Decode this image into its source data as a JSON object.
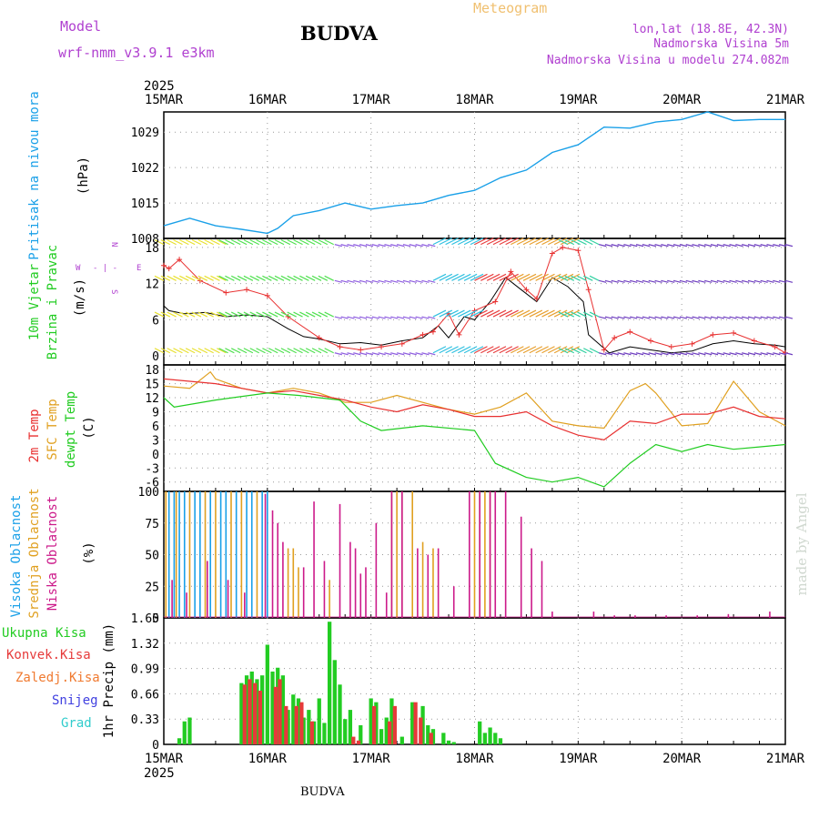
{
  "header": {
    "model_label": "Model",
    "model_name": "wrf-nmm_v3.9.1 e3km",
    "station": "BUDVA",
    "meteogram": "Meteogram",
    "lonlat": "lon,lat (18.8E, 42.3N)",
    "elevation": "Nadmorska Visina 5m",
    "model_elevation": "Nadmorska Visina u modelu 274.082m",
    "footer_station": "BUDVA",
    "credit": "made by Angel"
  },
  "colors": {
    "pressure": "#1aa0e8",
    "temp2m": "#e83030",
    "sfc": "#e0a020",
    "dewpt": "#20cc20",
    "high_cloud": "#1aa0e8",
    "mid_cloud": "#e0a020",
    "low_cloud": "#cc1a8a",
    "precip_total": "#22cc22",
    "precip_conv": "#e63a3a",
    "precip_frozen": "#f07a30",
    "precip_snow": "#4040e0",
    "precip_grad": "#30cccc",
    "purple": "#b040d0"
  },
  "chart_data": [
    {
      "type": "line",
      "title": "Pritisak na nivou mora",
      "unit": "(hPa)",
      "ylim": [
        1008,
        1033
      ],
      "yticks": [
        "1008",
        "1015",
        "1022",
        "1029"
      ],
      "year": "2025",
      "xticks": [
        "15MAR",
        "16MAR",
        "17MAR",
        "18MAR",
        "19MAR",
        "20MAR",
        "21MAR"
      ],
      "x_days": [
        0,
        0.25,
        0.5,
        0.75,
        1.0,
        1.1,
        1.25,
        1.5,
        1.75,
        2.0,
        2.25,
        2.5,
        2.75,
        3.0,
        3.25,
        3.5,
        3.75,
        4.0,
        4.25,
        4.5,
        4.75,
        5.0,
        5.25,
        5.5,
        5.75,
        6.0
      ],
      "values": [
        1010.5,
        1012,
        1010.5,
        1009.8,
        1009,
        1010,
        1012.5,
        1013.5,
        1015,
        1013.8,
        1014.5,
        1015,
        1016.5,
        1017.5,
        1020,
        1021.5,
        1025,
        1026.5,
        1030,
        1029.8,
        1031,
        1031.5,
        1033,
        1031.3,
        1031.5,
        1031.5
      ]
    },
    {
      "type": "line",
      "title": "10m Vjetar Brzina i Pravac",
      "unit": "(m/s)",
      "ylim": [
        -1.5,
        19.5
      ],
      "yticks": [
        "0",
        "6",
        "12",
        "18"
      ],
      "compass": {
        "n": "N",
        "w": "W",
        "e": "E",
        "s": "S",
        "dash": "- | -"
      },
      "series": [
        {
          "name": "speed",
          "x_days": [
            0,
            0.05,
            0.2,
            0.4,
            0.6,
            0.8,
            1.0,
            1.2,
            1.35,
            1.5,
            1.7,
            1.9,
            2.1,
            2.3,
            2.5,
            2.65,
            2.75,
            2.9,
            3.0,
            3.15,
            3.3,
            3.45,
            3.6,
            3.75,
            3.9,
            4.05,
            4.1,
            4.3,
            4.5,
            4.7,
            4.9,
            5.1,
            5.3,
            5.5,
            5.7,
            5.9,
            6.0
          ],
          "values": [
            8.3,
            7.5,
            7.0,
            7.2,
            6.5,
            6.8,
            6.5,
            4.5,
            3.2,
            2.8,
            2.0,
            2.2,
            1.8,
            2.5,
            3.0,
            5.0,
            3.0,
            6.5,
            6.0,
            9.0,
            13.0,
            11.0,
            9.0,
            13.0,
            11.5,
            9.0,
            3.5,
            0.5,
            1.5,
            1.0,
            0.5,
            0.8,
            2.0,
            2.5,
            2.0,
            1.8,
            1.5
          ]
        },
        {
          "name": "gust",
          "x_days": [
            0,
            0.05,
            0.15,
            0.35,
            0.6,
            0.8,
            1.0,
            1.2,
            1.5,
            1.7,
            1.9,
            2.1,
            2.3,
            2.5,
            2.6,
            2.75,
            2.85,
            3.0,
            3.2,
            3.35,
            3.5,
            3.6,
            3.75,
            3.85,
            4.0,
            4.1,
            4.25,
            4.35,
            4.5,
            4.7,
            4.9,
            5.1,
            5.3,
            5.5,
            5.7,
            5.9,
            6.0
          ],
          "values": [
            15.0,
            14.5,
            16.0,
            12.5,
            10.5,
            11.0,
            10.0,
            6.5,
            3.0,
            1.5,
            1.0,
            1.5,
            2.0,
            3.5,
            4.0,
            7.0,
            3.5,
            7.5,
            9.0,
            14.0,
            11.0,
            9.5,
            17.0,
            18.0,
            17.5,
            11.0,
            1.0,
            3.0,
            4.0,
            2.5,
            1.5,
            2.0,
            3.5,
            3.8,
            2.5,
            1.5,
            0.5
          ]
        }
      ],
      "barb_day_ranges": [
        [
          0.0,
          0.62
        ],
        [
          0.62,
          1.65
        ],
        [
          1.65,
          2.6
        ],
        [
          2.6,
          3.0
        ],
        [
          3.0,
          3.35
        ],
        [
          3.35,
          3.9
        ],
        [
          3.9,
          4.2
        ],
        [
          4.2,
          6.0
        ]
      ]
    },
    {
      "type": "line",
      "title": "2m Temp / SFC Temp / dewpt Temp",
      "labels": {
        "t2m": "2m Temp",
        "sfc": "SFC Temp",
        "dewpt": "dewpt Temp"
      },
      "unit": "(C)",
      "ylim": [
        -8,
        19
      ],
      "yticks": [
        "-6",
        "-3",
        "0",
        "3",
        "6",
        "9",
        "12",
        "15",
        "18"
      ],
      "series": [
        {
          "name": "2m Temp",
          "x_days": [
            0,
            0.25,
            0.5,
            0.75,
            1.0,
            1.25,
            1.5,
            1.75,
            2.0,
            2.25,
            2.5,
            2.75,
            3.0,
            3.25,
            3.5,
            3.75,
            4.0,
            4.25,
            4.5,
            4.75,
            5.0,
            5.25,
            5.5,
            5.75,
            6.0
          ],
          "values": [
            16,
            15.5,
            15,
            14,
            13,
            13.5,
            12.5,
            11.5,
            10,
            9,
            10.5,
            9.5,
            8,
            8,
            9,
            6,
            4,
            3,
            7,
            6.5,
            8.5,
            8.5,
            10,
            8,
            7.5
          ]
        },
        {
          "name": "SFC Temp",
          "x_days": [
            0,
            0.25,
            0.45,
            0.5,
            0.75,
            1.0,
            1.25,
            1.5,
            1.75,
            2.0,
            2.25,
            2.5,
            2.75,
            3.0,
            3.25,
            3.5,
            3.75,
            4.0,
            4.25,
            4.5,
            4.65,
            4.75,
            5.0,
            5.25,
            5.5,
            5.75,
            6.0
          ],
          "values": [
            14.5,
            14,
            17.5,
            16,
            14,
            13,
            14,
            13,
            11,
            11,
            12.5,
            11,
            9.5,
            8.5,
            10,
            13,
            7,
            6,
            5.5,
            13.5,
            15,
            13,
            6,
            6.5,
            15.5,
            9,
            6
          ]
        },
        {
          "name": "dewpt Temp",
          "x_days": [
            0,
            0.1,
            0.5,
            1.0,
            1.3,
            1.7,
            1.9,
            2.1,
            2.5,
            3.0,
            3.2,
            3.5,
            3.75,
            4.0,
            4.25,
            4.5,
            4.75,
            5.0,
            5.25,
            5.5,
            5.75,
            6.0
          ],
          "values": [
            12,
            10,
            11.5,
            13,
            12.5,
            11.5,
            7,
            5,
            6,
            5,
            -2,
            -5,
            -6,
            -5,
            -7,
            -2,
            2,
            0.5,
            2,
            1,
            1.5,
            2
          ]
        }
      ]
    },
    {
      "type": "bar",
      "title": "Visoka Oblacnost / Srednja Oblacnost / Niska Oblacnost",
      "labels": {
        "high": "Visoka Oblacnost",
        "mid": "Srednja Oblacnost",
        "low": "Niska Oblacnost"
      },
      "unit": "(%)",
      "ylim": [
        0,
        100
      ],
      "yticks": [
        "0",
        "25",
        "50",
        "75",
        "100"
      ],
      "series": [
        {
          "name": "high",
          "x_days": [
            0.05,
            0.1,
            0.15,
            0.2,
            0.3,
            0.35,
            0.45,
            0.55,
            0.6,
            0.7,
            0.8,
            0.85,
            0.95,
            1.0
          ],
          "values": [
            100,
            100,
            100,
            100,
            100,
            100,
            100,
            100,
            100,
            100,
            100,
            100,
            100,
            100
          ]
        },
        {
          "name": "mid",
          "x_days": [
            0.02,
            0.12,
            0.25,
            0.4,
            0.5,
            0.65,
            0.75,
            0.9,
            1.2,
            1.25,
            1.3,
            1.6,
            2.2,
            2.25,
            2.3,
            2.4,
            2.5,
            2.6,
            3.0,
            3.05,
            3.1,
            3.15
          ],
          "values": [
            100,
            100,
            100,
            100,
            100,
            100,
            100,
            100,
            55,
            55,
            40,
            30,
            100,
            100,
            100,
            100,
            60,
            55,
            100,
            100,
            100,
            100
          ]
        },
        {
          "name": "low",
          "x_days": [
            0.08,
            0.22,
            0.42,
            0.62,
            0.78,
            0.98,
            1.05,
            1.1,
            1.15,
            1.35,
            1.45,
            1.55,
            1.7,
            1.8,
            1.85,
            1.9,
            1.95,
            2.05,
            2.15,
            2.2,
            2.3,
            2.45,
            2.55,
            2.65,
            2.8,
            2.95,
            3.05,
            3.15,
            3.2,
            3.3,
            3.45,
            3.55,
            3.65,
            3.75,
            4.15,
            4.35,
            4.55,
            4.85,
            5.15,
            5.45,
            5.85
          ],
          "values": [
            30,
            20,
            45,
            30,
            20,
            98,
            85,
            75,
            60,
            40,
            92,
            45,
            90,
            60,
            55,
            35,
            40,
            75,
            20,
            100,
            100,
            55,
            50,
            55,
            25,
            100,
            100,
            100,
            100,
            100,
            80,
            55,
            45,
            5,
            5,
            2,
            2,
            2,
            2,
            3,
            5
          ]
        }
      ]
    },
    {
      "type": "bar",
      "title": "1hr Precip",
      "labels": {
        "total": "Ukupna Kisa",
        "conv": "Konvek.Kisa",
        "frozen": "Zaledj.Kisa",
        "snow": "Snijeg",
        "grad": "Grad"
      },
      "unit": "1hr Precip (mm)",
      "ylim": [
        0,
        1.65
      ],
      "yticks": [
        "0",
        "0.33",
        "0.66",
        "0.99",
        "1.32",
        "1.65"
      ],
      "xticks": [
        "15MAR",
        "16MAR",
        "17MAR",
        "18MAR",
        "19MAR",
        "20MAR",
        "21MAR"
      ],
      "year": "2025",
      "series": [
        {
          "name": "total",
          "x_days": [
            0.15,
            0.2,
            0.25,
            0.75,
            0.8,
            0.85,
            0.9,
            0.95,
            1.0,
            1.05,
            1.1,
            1.15,
            1.2,
            1.25,
            1.3,
            1.35,
            1.4,
            1.45,
            1.5,
            1.55,
            1.6,
            1.65,
            1.7,
            1.75,
            1.8,
            1.9,
            2.0,
            2.05,
            2.1,
            2.15,
            2.2,
            2.3,
            2.4,
            2.5,
            2.55,
            2.6,
            2.7,
            2.75,
            2.8,
            3.05,
            3.1,
            3.15,
            3.2,
            3.25
          ],
          "values": [
            0.08,
            0.3,
            0.35,
            0.8,
            0.9,
            0.95,
            0.85,
            0.9,
            1.3,
            0.95,
            1.0,
            0.9,
            0.45,
            0.65,
            0.6,
            0.35,
            0.45,
            0.3,
            0.6,
            0.28,
            1.6,
            1.1,
            0.78,
            0.33,
            0.45,
            0.25,
            0.6,
            0.55,
            0.2,
            0.35,
            0.6,
            0.1,
            0.55,
            0.5,
            0.25,
            0.2,
            0.15,
            0.05,
            0.03,
            0.3,
            0.15,
            0.22,
            0.15,
            0.08
          ]
        },
        {
          "name": "conv",
          "x_days": [
            0.78,
            0.83,
            0.88,
            0.93,
            1.08,
            1.12,
            1.18,
            1.28,
            1.33,
            1.43,
            1.83,
            1.88,
            2.03,
            2.18,
            2.23,
            2.43,
            2.48,
            2.58
          ],
          "values": [
            0.78,
            0.85,
            0.8,
            0.7,
            0.75,
            0.85,
            0.5,
            0.5,
            0.55,
            0.3,
            0.1,
            0.05,
            0.5,
            0.3,
            0.5,
            0.55,
            0.35,
            0.15
          ]
        }
      ]
    }
  ]
}
